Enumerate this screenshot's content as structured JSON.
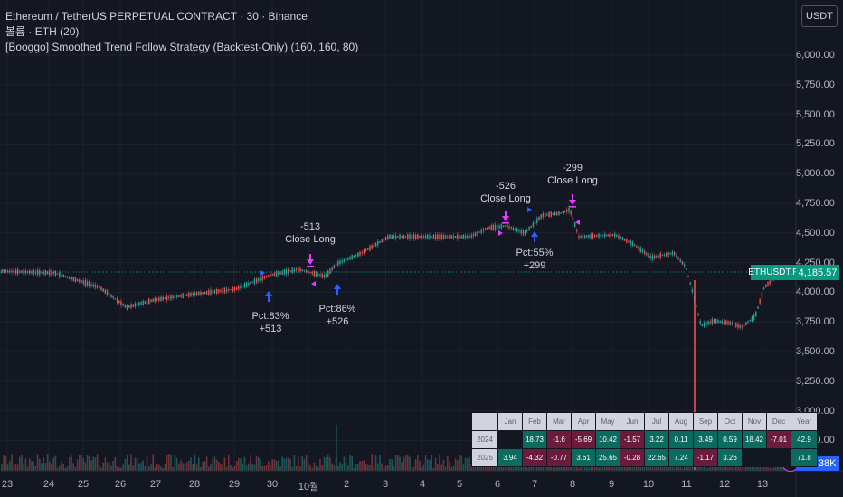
{
  "legend": {
    "symbol_line": "Ethereum / TetherUS PERPETUAL CONTRACT · 30 · Binance",
    "volume_line": "볼륨 · ETH (20)",
    "strategy_line": "[Booggo] Smoothed Trend Follow Strategy (Backtest-Only) (160, 160, 80)"
  },
  "currency_button": "USDT",
  "y_axis": [
    "6,000.00",
    "5,750.00",
    "5,500.00",
    "5,250.00",
    "5,000.00",
    "4,750.00",
    "4,500.00",
    "4,250.00",
    "4,000.00",
    "3,750.00",
    "3,500.00",
    "3,250.00",
    "3,000.00",
    "2,750.00"
  ],
  "x_axis": [
    "23",
    "24",
    "25",
    "26",
    "27",
    "28",
    "29",
    "30",
    "10월",
    "2",
    "3",
    "4",
    "5",
    "6",
    "7",
    "8",
    "9",
    "10",
    "11",
    "12",
    "13"
  ],
  "last_price": "4,185.57",
  "symbol_tag": "ETHUSDT.P",
  "volume_value": "129.38K",
  "annotations": {
    "trade1_entry_pct": "Pct:83%",
    "trade1_entry_pnl": "+513",
    "trade1_exit_pnl": "-513",
    "trade1_exit_label": "Close Long",
    "trade2_entry_pct": "Pct:86%",
    "trade2_entry_pnl": "+526",
    "trade2_exit_pnl": "-526",
    "trade2_exit_label": "Close Long",
    "trade3_entry_pct": "Pct:55%",
    "trade3_entry_pnl": "+299",
    "trade3_exit_pnl": "-299",
    "trade3_exit_label": "Close Long"
  },
  "perf_table": {
    "headers": [
      "",
      "Jan",
      "Feb",
      "Mar",
      "Apr",
      "May",
      "Jun",
      "Jul",
      "Aug",
      "Sep",
      "Oct",
      "Nov",
      "Dec",
      "Year"
    ],
    "rows": [
      {
        "year": "2024",
        "values": [
          "",
          "18.73",
          "-1.6",
          "-5.69",
          "10.42",
          "-1.57",
          "3.22",
          "0.11",
          "3.49",
          "0.59",
          "18.42",
          "-7.01",
          "42.9"
        ]
      },
      {
        "year": "2025",
        "values": [
          "3.94",
          "-4.32",
          "-0.77",
          "3.61",
          "25.65",
          "-0.28",
          "22.65",
          "7.24",
          "-1.17",
          "3.26",
          "",
          "",
          "71.8"
        ]
      }
    ]
  },
  "colors": {
    "up": "#26a69a",
    "down": "#ef5350",
    "bg": "#131722",
    "accent": "#089981",
    "buy": "#2962ff",
    "sell": "#e040fb"
  }
}
